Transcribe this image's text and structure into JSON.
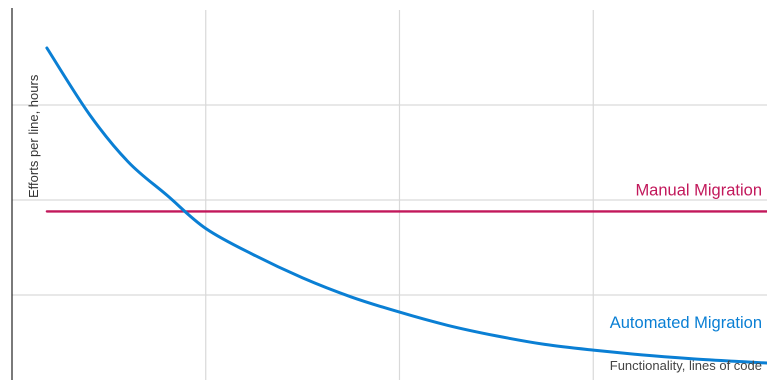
{
  "chart_data": {
    "type": "line",
    "title": "",
    "xlabel": "Functionality, lines of code",
    "ylabel": "Efforts per line, hours",
    "grid": true,
    "x_ticks_labeled": false,
    "y_ticks_labeled": false,
    "xlim": [
      0,
      4
    ],
    "ylim": [
      0,
      4
    ],
    "x_gridlines": [
      1,
      2,
      3
    ],
    "y_gridlines": [
      1,
      2,
      3
    ],
    "series": [
      {
        "name": "Manual Migration",
        "color": "#c2185b",
        "x": [
          0.18,
          3.93
        ],
        "y": [
          1.88,
          1.88
        ]
      },
      {
        "name": "Automated Migration",
        "color": "#0a7fd4",
        "x": [
          0.18,
          0.4,
          0.6,
          0.8,
          1.0,
          1.25,
          1.5,
          1.75,
          2.0,
          2.25,
          2.5,
          2.75,
          3.0,
          3.25,
          3.5,
          3.75,
          3.93
        ],
        "y": [
          3.6,
          2.9,
          2.4,
          2.05,
          1.7,
          1.42,
          1.18,
          0.98,
          0.82,
          0.68,
          0.57,
          0.48,
          0.42,
          0.37,
          0.33,
          0.3,
          0.28
        ]
      }
    ]
  }
}
